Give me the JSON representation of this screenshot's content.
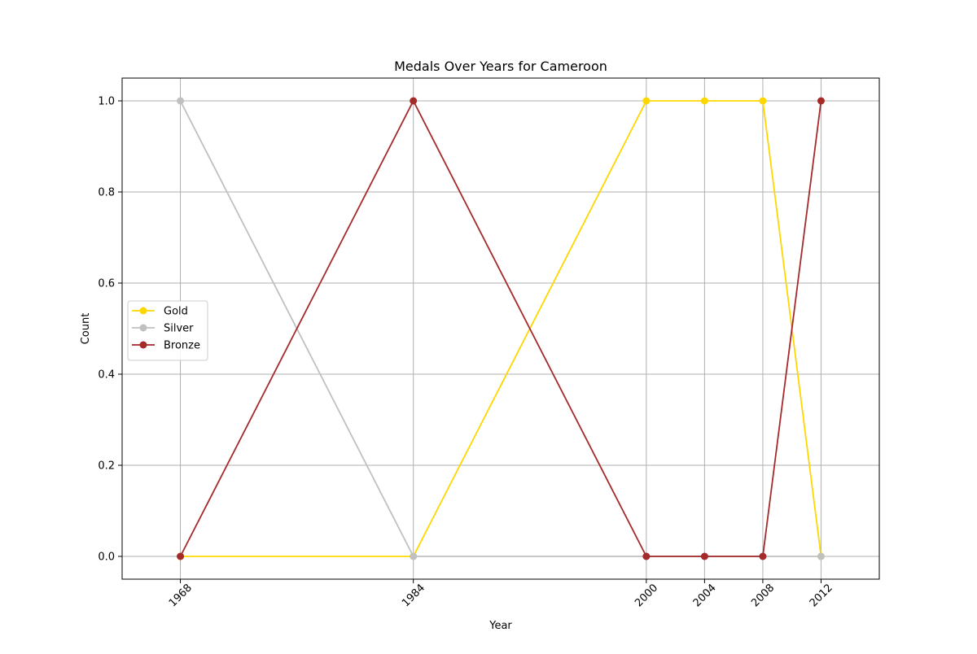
{
  "chart_data": {
    "type": "line",
    "title": "Medals Over Years for Cameroon",
    "xlabel": "Year",
    "ylabel": "Count",
    "x": [
      1968,
      1984,
      2000,
      2004,
      2008,
      2012
    ],
    "x_tick_labels": [
      "1968",
      "1984",
      "2000",
      "2004",
      "2008",
      "2012"
    ],
    "xlim": [
      1964,
      2016
    ],
    "ylim": [
      -0.05,
      1.05
    ],
    "y_ticks": [
      0.0,
      0.2,
      0.4,
      0.6,
      0.8,
      1.0
    ],
    "y_tick_labels": [
      "0.0",
      "0.2",
      "0.4",
      "0.6",
      "0.8",
      "1.0"
    ],
    "grid": true,
    "legend_position": "center-left",
    "series": [
      {
        "name": "Gold",
        "color": "#FFD700",
        "values": [
          0,
          0,
          1,
          1,
          1,
          0
        ]
      },
      {
        "name": "Silver",
        "color": "#C0C0C0",
        "values": [
          1,
          0,
          0,
          0,
          0,
          0
        ]
      },
      {
        "name": "Bronze",
        "color": "#A52A2A",
        "values": [
          0,
          1,
          0,
          0,
          0,
          1
        ]
      }
    ]
  }
}
